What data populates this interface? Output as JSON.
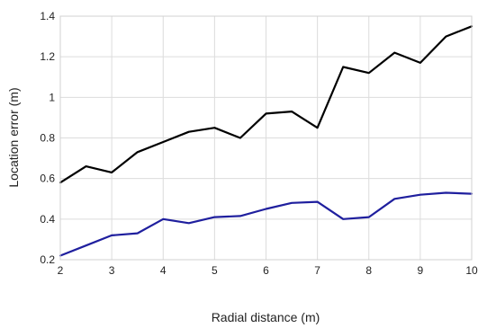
{
  "chart_data": {
    "type": "line",
    "title": "",
    "xlabel": "Radial distance (m)",
    "ylabel": "Location error (m)",
    "xlim": [
      2,
      10
    ],
    "ylim": [
      0.2,
      1.4
    ],
    "xticks": [
      "2",
      "3",
      "4",
      "5",
      "6",
      "7",
      "8",
      "9",
      "10"
    ],
    "yticks": [
      "0.2",
      "0.4",
      "0.6",
      "0.8",
      "1",
      "1.2",
      "1.4"
    ],
    "grid": true,
    "x": [
      2,
      2.5,
      3,
      3.5,
      4,
      4.5,
      5,
      5.5,
      6,
      6.5,
      7,
      7.5,
      8,
      8.5,
      9,
      9.5,
      10
    ],
    "series": [
      {
        "color": "#000000",
        "values": [
          0.58,
          0.66,
          0.63,
          0.73,
          0.78,
          0.83,
          0.85,
          0.8,
          0.92,
          0.93,
          0.85,
          1.15,
          1.12,
          1.22,
          1.17,
          1.3,
          1.35
        ]
      },
      {
        "color": "#1f1f9e",
        "values": [
          0.22,
          0.27,
          0.32,
          0.33,
          0.4,
          0.38,
          0.41,
          0.415,
          0.45,
          0.48,
          0.485,
          0.4,
          0.41,
          0.5,
          0.52,
          0.53,
          0.525
        ]
      }
    ]
  }
}
